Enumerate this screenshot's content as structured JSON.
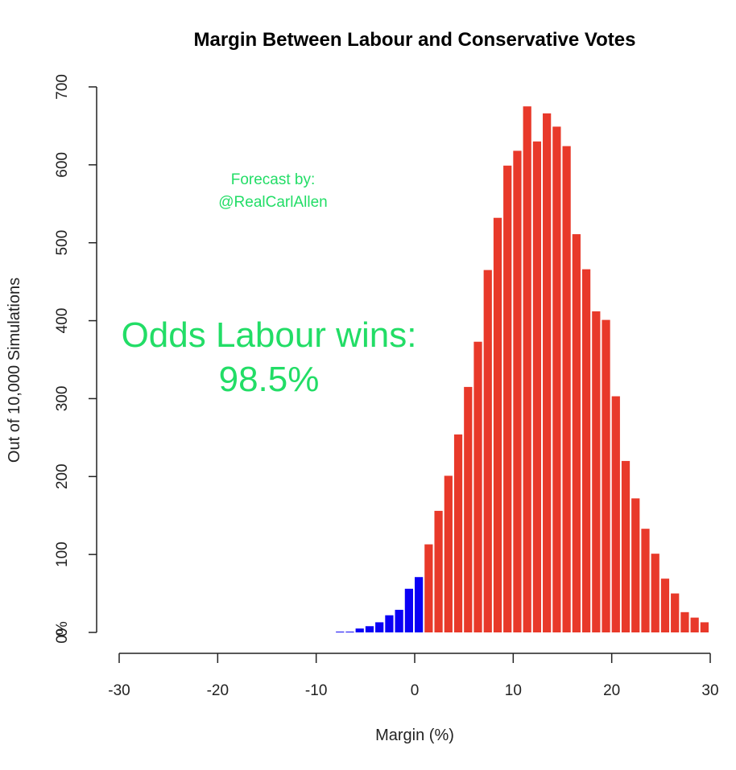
{
  "colors": {
    "labour_margin_bar": "#e8392a",
    "conservative_margin_bar": "#0a00f5",
    "annotation": "#22dd66",
    "axis": "#222222"
  },
  "chart_data": {
    "type": "bar",
    "subtype": "histogram",
    "title": "Margin Between Labour and Conservative Votes",
    "xlabel": "Margin (%)",
    "ylabel": "Out of 10,000 Simulations",
    "xlim": [
      -30,
      30
    ],
    "ylim": [
      0,
      700
    ],
    "x_ticks": [
      "-30",
      "-20",
      "-10",
      "0",
      "10",
      "20",
      "30"
    ],
    "y_ticks": [
      "0",
      "100",
      "200",
      "300",
      "400",
      "500",
      "600",
      "700"
    ],
    "y_zero_extra_label": "0%",
    "grid": false,
    "bin_width": 1,
    "bins_start": [
      -8,
      -7,
      -6,
      -5,
      -4,
      -3,
      -2,
      -1,
      0,
      1,
      2,
      3,
      4,
      5,
      6,
      7,
      8,
      9,
      10,
      11,
      12,
      13,
      14,
      15,
      16,
      17,
      18,
      19,
      20,
      21,
      22,
      23,
      24,
      25,
      26,
      27,
      28,
      29
    ],
    "values": [
      1,
      1,
      5,
      8,
      13,
      22,
      29,
      56,
      71,
      113,
      156,
      201,
      254,
      315,
      373,
      465,
      532,
      599,
      618,
      675,
      630,
      666,
      649,
      624,
      511,
      466,
      412,
      401,
      303,
      220,
      172,
      133,
      101,
      69,
      50,
      26,
      19,
      13
    ],
    "series_colors_rule": "bins starting below 1 use conservative_margin_bar color; the rest use labour_margin_bar color",
    "split_at": 1,
    "annotations": {
      "credit_line1": "Forecast by:",
      "credit_line2": "@RealCarlAllen",
      "odds_line1": "Odds Labour wins:",
      "odds_line2": "98.5%"
    }
  }
}
